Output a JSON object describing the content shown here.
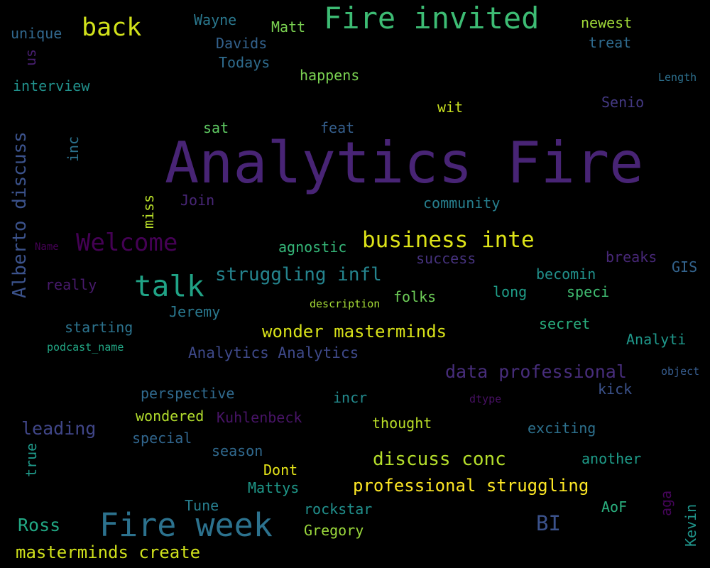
{
  "words": [
    {
      "id": "analytics-fire",
      "text": "Analytics Fire",
      "color": "#482475"
    },
    {
      "id": "fire-invited",
      "text": "Fire invited",
      "color": "#3dbc74"
    },
    {
      "id": "fire-week",
      "text": "Fire week",
      "color": "#2c728e"
    },
    {
      "id": "talk",
      "text": "talk",
      "color": "#20a386"
    },
    {
      "id": "back",
      "text": "back",
      "color": "#d2e21b"
    },
    {
      "id": "welcome",
      "text": "Welcome",
      "color": "#440154"
    },
    {
      "id": "business-inte",
      "text": "business inte",
      "color": "#dde318"
    },
    {
      "id": "struggling-infl",
      "text": "struggling infl",
      "color": "#25848e"
    },
    {
      "id": "wonder-masterminds",
      "text": "wonder masterminds",
      "color": "#d8e219"
    },
    {
      "id": "data-professional",
      "text": "data professional",
      "color": "#472d7b"
    },
    {
      "id": "discuss-conc",
      "text": "discuss conc",
      "color": "#b5de2b"
    },
    {
      "id": "professional-struggling",
      "text": "professional struggling",
      "color": "#fde725"
    },
    {
      "id": "masterminds-create",
      "text": "masterminds create",
      "color": "#d0e11c"
    },
    {
      "id": "alberto-discuss",
      "text": "Alberto discuss",
      "color": "#3b528b"
    },
    {
      "id": "analytics-analytics",
      "text": "Analytics Analytics",
      "color": "#3e4989"
    },
    {
      "id": "ross",
      "text": "Ross",
      "color": "#22a884"
    },
    {
      "id": "bi",
      "text": "BI",
      "color": "#3b528b"
    },
    {
      "id": "leading",
      "text": "leading",
      "color": "#404688"
    },
    {
      "id": "wayne",
      "text": "Wayne",
      "color": "#2a788e"
    },
    {
      "id": "matt",
      "text": "Matt",
      "color": "#7ad151"
    },
    {
      "id": "newest",
      "text": "newest",
      "color": "#a0da39"
    },
    {
      "id": "unique",
      "text": "unique",
      "color": "#31688e"
    },
    {
      "id": "davids",
      "text": "Davids",
      "color": "#33628d"
    },
    {
      "id": "treat",
      "text": "treat",
      "color": "#2f6b8e"
    },
    {
      "id": "us",
      "text": "us",
      "color": "#481f70"
    },
    {
      "id": "todays",
      "text": "Todays",
      "color": "#2f6c8e"
    },
    {
      "id": "happens",
      "text": "happens",
      "color": "#7ad151"
    },
    {
      "id": "length",
      "text": "Length",
      "color": "#2d708e"
    },
    {
      "id": "interview",
      "text": "interview",
      "color": "#21918c"
    },
    {
      "id": "wit",
      "text": "wit",
      "color": "#c8e020"
    },
    {
      "id": "senio",
      "text": "Senio",
      "color": "#443983"
    },
    {
      "id": "sat",
      "text": "sat",
      "color": "#5ec962"
    },
    {
      "id": "feat",
      "text": "feat",
      "color": "#355f8d"
    },
    {
      "id": "inc",
      "text": "inc",
      "color": "#2c728e"
    },
    {
      "id": "miss",
      "text": "miss",
      "color": "#b8de29"
    },
    {
      "id": "join",
      "text": "Join",
      "color": "#482677"
    },
    {
      "id": "community",
      "text": "community",
      "color": "#277f8e"
    },
    {
      "id": "name",
      "text": "Name",
      "color": "#440154"
    },
    {
      "id": "agnostic",
      "text": "agnostic",
      "color": "#35b779"
    },
    {
      "id": "success",
      "text": "success",
      "color": "#46327e"
    },
    {
      "id": "breaks",
      "text": "breaks",
      "color": "#482878"
    },
    {
      "id": "gis",
      "text": "GIS",
      "color": "#33638d"
    },
    {
      "id": "really",
      "text": "really",
      "color": "#481a6c"
    },
    {
      "id": "becomin",
      "text": "becomin",
      "color": "#21918c"
    },
    {
      "id": "long",
      "text": "long",
      "color": "#1f9e89"
    },
    {
      "id": "speci",
      "text": "speci",
      "color": "#40bd72"
    },
    {
      "id": "folks",
      "text": "folks",
      "color": "#6ece58"
    },
    {
      "id": "jeremy",
      "text": "Jeremy",
      "color": "#2a788e"
    },
    {
      "id": "description",
      "text": "description",
      "color": "#a5db36"
    },
    {
      "id": "starting",
      "text": "starting",
      "color": "#2c738e"
    },
    {
      "id": "secret",
      "text": "secret",
      "color": "#29af7f"
    },
    {
      "id": "analyti",
      "text": "Analyti",
      "color": "#1f988b"
    },
    {
      "id": "podcast-name",
      "text": "podcast_name",
      "color": "#22a785"
    },
    {
      "id": "object",
      "text": "object",
      "color": "#365c8d"
    },
    {
      "id": "kick",
      "text": "kick",
      "color": "#3b528b"
    },
    {
      "id": "perspective",
      "text": "perspective",
      "color": "#306a8e"
    },
    {
      "id": "incr",
      "text": "incr",
      "color": "#238a8d"
    },
    {
      "id": "dtype",
      "text": "dtype",
      "color": "#471063"
    },
    {
      "id": "wondered",
      "text": "wondered",
      "color": "#b2dd2d"
    },
    {
      "id": "kuhlenbeck",
      "text": "Kuhlenbeck",
      "color": "#481467"
    },
    {
      "id": "thought",
      "text": "thought",
      "color": "#bade28"
    },
    {
      "id": "exciting",
      "text": "exciting",
      "color": "#2d718e"
    },
    {
      "id": "special",
      "text": "special",
      "color": "#31668e"
    },
    {
      "id": "true",
      "text": "true",
      "color": "#1f9a8a"
    },
    {
      "id": "season",
      "text": "season",
      "color": "#30698e"
    },
    {
      "id": "another",
      "text": "another",
      "color": "#1e9c89"
    },
    {
      "id": "dont",
      "text": "Dont",
      "color": "#e5e419"
    },
    {
      "id": "mattys",
      "text": "Mattys",
      "color": "#1f998a"
    },
    {
      "id": "aga",
      "text": "aga",
      "color": "#450559"
    },
    {
      "id": "tune",
      "text": "Tune",
      "color": "#277e8e"
    },
    {
      "id": "rockstar",
      "text": "rockstar",
      "color": "#21908d"
    },
    {
      "id": "aof",
      "text": "AoF",
      "color": "#2ab07f"
    },
    {
      "id": "kevin",
      "text": "Kevin",
      "color": "#1f958b"
    },
    {
      "id": "gregory",
      "text": "Gregory",
      "color": "#9bd93c"
    }
  ]
}
